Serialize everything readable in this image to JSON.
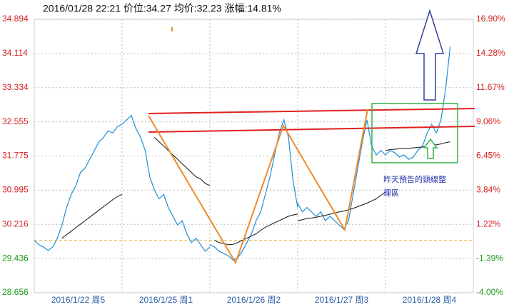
{
  "chart_data": {
    "type": "line",
    "title": "2016/01/28  22:21  价位:34.27  均价:32.23  涨幅:14.81%",
    "categories": [
      "2016/1/22 周5",
      "2016/1/25 周1",
      "2016/1/26 周2",
      "2016/1/27 周3",
      "2016/1/28 周4"
    ],
    "series": [
      {
        "color": "#1e8fd6",
        "values": [
          [
            29.85,
            29.75,
            29.7,
            29.62,
            29.7,
            29.9,
            30.2,
            30.6,
            30.9,
            31.1,
            31.4,
            31.5,
            31.7,
            31.9,
            32.1,
            32.2,
            32.35,
            32.3,
            32.45,
            32.5
          ],
          [
            32.5,
            32.6,
            32.7,
            32.4,
            32.2,
            31.9,
            31.3,
            31.0,
            30.8,
            30.9,
            30.6,
            30.4,
            30.2,
            30.3,
            30.0,
            29.8,
            29.9,
            29.75,
            29.6,
            29.7
          ],
          [
            29.75,
            29.7,
            29.6,
            29.55,
            29.5,
            29.4,
            29.45,
            29.6,
            29.8,
            30.0,
            30.3,
            30.5,
            30.9,
            31.3,
            31.8,
            32.3,
            32.6,
            32.2,
            31.2,
            30.6
          ],
          [
            30.7,
            30.5,
            30.6,
            30.5,
            30.4,
            30.5,
            30.3,
            30.4,
            30.3,
            30.2,
            30.1,
            30.3,
            30.9,
            31.5,
            32.1,
            32.6,
            32.0,
            31.8,
            31.9,
            31.8
          ],
          [
            31.8,
            31.9,
            31.85,
            31.75,
            31.8,
            31.7,
            31.75,
            31.9,
            32.0,
            32.3,
            32.5,
            32.3,
            32.6,
            33.3,
            34.27,
            null,
            null,
            null,
            null,
            null
          ]
        ]
      },
      {
        "color": "#111111",
        "values": [
          [
            null,
            null,
            null,
            null,
            null,
            null,
            29.9,
            29.98,
            30.06,
            30.14,
            30.22,
            30.3,
            30.38,
            30.46,
            30.54,
            30.62,
            30.7,
            30.78,
            30.85,
            30.9
          ],
          [
            null,
            null,
            null,
            null,
            null,
            null,
            null,
            32.2,
            32.1,
            32.0,
            31.9,
            31.8,
            31.7,
            31.6,
            31.5,
            31.4,
            31.3,
            31.25,
            31.15,
            31.1
          ],
          [
            null,
            29.85,
            29.8,
            29.78,
            29.75,
            29.76,
            29.8,
            29.85,
            29.9,
            29.95,
            30.0,
            30.08,
            30.15,
            30.2,
            30.25,
            30.3,
            30.35,
            30.4,
            30.43,
            30.45
          ],
          [
            30.3,
            30.32,
            30.35,
            30.36,
            30.38,
            30.4,
            30.42,
            30.45,
            30.47,
            30.5,
            30.52,
            30.55,
            30.58,
            30.62,
            30.66,
            30.7,
            30.75,
            30.8,
            30.88,
            30.95
          ],
          [
            31.9,
            31.92,
            31.93,
            31.94,
            31.95,
            31.95,
            31.96,
            31.97,
            31.98,
            32.0,
            32.02,
            32.03,
            32.05,
            32.08,
            32.1,
            null,
            null,
            null,
            null,
            null
          ]
        ]
      }
    ],
    "reference": 29.85,
    "ylim": [
      28.656,
      34.894
    ],
    "yticks": [
      28.656,
      29.436,
      30.216,
      30.995,
      31.775,
      32.555,
      33.334,
      34.114,
      34.894
    ],
    "y2lim": [
      -4.0,
      16.9
    ],
    "y2ticks": [
      {
        "value": -4.0,
        "label": "-4.00%"
      },
      {
        "value": -1.39,
        "label": "-1.39%"
      },
      {
        "value": 1.22,
        "label": "1.22%"
      },
      {
        "value": 3.84,
        "label": "3.84%"
      },
      {
        "value": 6.45,
        "label": "6.45%"
      },
      {
        "value": 9.06,
        "label": "9.06%"
      },
      {
        "value": 11.67,
        "label": "11.67%"
      },
      {
        "value": 14.28,
        "label": "14.28%"
      },
      {
        "value": 16.9,
        "label": "16.90%"
      }
    ],
    "grid": true,
    "annotations": [
      "昨天預告的頸線整",
      "理區"
    ]
  }
}
